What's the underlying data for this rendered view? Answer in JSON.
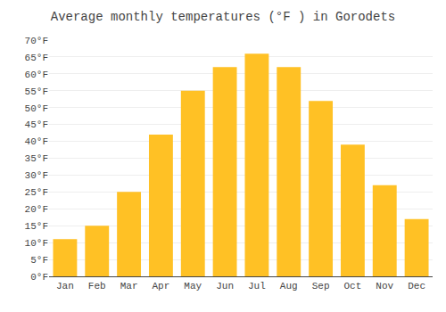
{
  "chart_data": {
    "type": "bar",
    "title": "Average monthly temperatures (°F ) in Gorodets",
    "categories": [
      "Jan",
      "Feb",
      "Mar",
      "Apr",
      "May",
      "Jun",
      "Jul",
      "Aug",
      "Sep",
      "Oct",
      "Nov",
      "Dec"
    ],
    "values": [
      11,
      15,
      25,
      42,
      55,
      62,
      66,
      62,
      52,
      39,
      27,
      17
    ],
    "color": "#FFC125",
    "ylim": [
      0,
      70
    ],
    "yticks": [
      {
        "value": 0,
        "label": "0°F"
      },
      {
        "value": 5,
        "label": "5°F"
      },
      {
        "value": 10,
        "label": "10°F"
      },
      {
        "value": 15,
        "label": "15°F"
      },
      {
        "value": 20,
        "label": "20°F"
      },
      {
        "value": 25,
        "label": "25°F"
      },
      {
        "value": 30,
        "label": "30°F"
      },
      {
        "value": 35,
        "label": "35°F"
      },
      {
        "value": 40,
        "label": "40°F"
      },
      {
        "value": 45,
        "label": "45°F"
      },
      {
        "value": 50,
        "label": "50°F"
      },
      {
        "value": 55,
        "label": "55°F"
      },
      {
        "value": 60,
        "label": "60°F"
      },
      {
        "value": 65,
        "label": "65°F"
      },
      {
        "value": 70,
        "label": "70°F"
      }
    ],
    "grid": true
  }
}
